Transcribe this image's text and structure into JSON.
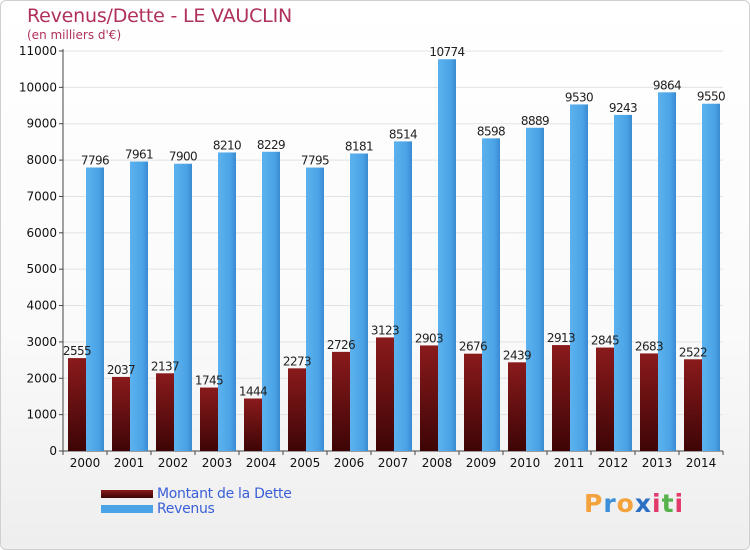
{
  "title": "Revenus/Dette - LE VAUCLIN",
  "subtitle": "(en milliers d'€)",
  "colors": {
    "debt": "#7a0f12",
    "revenue": "#4aa3e6",
    "title": "#b0305c",
    "legend_text": "#3a5fd8"
  },
  "legend": {
    "debt_label": "Montant de la Dette",
    "revenue_label": "Revenus"
  },
  "logo": {
    "text": "Proxiti"
  },
  "chart_data": {
    "type": "bar",
    "title": "Revenus/Dette - LE VAUCLIN",
    "subtitle": "(en milliers d'€)",
    "xlabel": "",
    "ylabel": "",
    "ylim": [
      0,
      11000
    ],
    "yticks": [
      0,
      1000,
      2000,
      3000,
      4000,
      5000,
      6000,
      7000,
      8000,
      9000,
      10000,
      11000
    ],
    "grid": true,
    "legend_position": "bottom-left",
    "categories": [
      "2000",
      "2001",
      "2002",
      "2003",
      "2004",
      "2005",
      "2006",
      "2007",
      "2008",
      "2009",
      "2010",
      "2011",
      "2012",
      "2013",
      "2014"
    ],
    "series": [
      {
        "name": "Montant de la Dette",
        "values": [
          2555,
          2037,
          2137,
          1745,
          1444,
          2273,
          2726,
          3123,
          2903,
          2676,
          2439,
          2913,
          2845,
          2683,
          2522
        ],
        "labels": [
          "2555",
          "2037",
          "2137",
          "1745",
          "1444",
          "2273",
          "2726",
          "3123",
          "2903",
          "2676",
          "2439",
          "2913",
          "2845",
          "2683",
          "2522"
        ]
      },
      {
        "name": "Revenus",
        "values": [
          7796,
          7961,
          7900,
          8210,
          8229,
          7795,
          8181,
          8514,
          10774,
          8598,
          8889,
          9530,
          9243,
          9864,
          9550
        ],
        "labels": [
          "7796",
          "7961",
          "7900",
          "8210",
          "8229",
          "7795",
          "8181",
          "8514",
          "10774",
          "8598",
          "8889",
          "9530",
          "9243",
          "9864",
          "9550"
        ]
      }
    ]
  }
}
